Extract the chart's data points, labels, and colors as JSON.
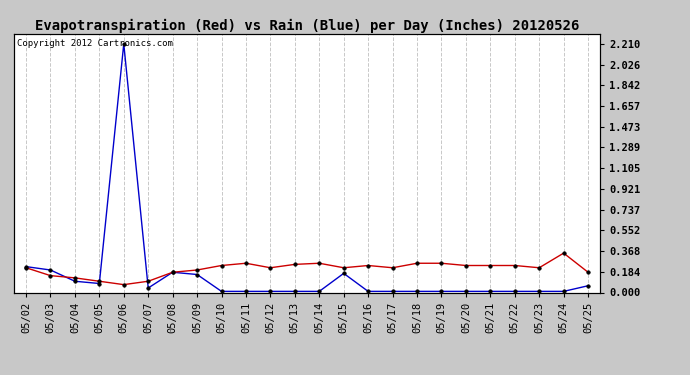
{
  "title": "Evapotranspiration (Red) vs Rain (Blue) per Day (Inches) 20120526",
  "copyright_text": "Copyright 2012 Cartronics.com",
  "dates": [
    "05/02",
    "05/03",
    "05/04",
    "05/05",
    "05/06",
    "05/07",
    "05/08",
    "05/09",
    "05/10",
    "05/11",
    "05/12",
    "05/13",
    "05/14",
    "05/15",
    "05/16",
    "05/17",
    "05/18",
    "05/19",
    "05/20",
    "05/21",
    "05/22",
    "05/23",
    "05/24",
    "05/25"
  ],
  "rain_blue": [
    0.23,
    0.2,
    0.1,
    0.08,
    2.21,
    0.04,
    0.18,
    0.16,
    0.01,
    0.01,
    0.01,
    0.01,
    0.01,
    0.17,
    0.01,
    0.01,
    0.01,
    0.01,
    0.01,
    0.01,
    0.01,
    0.01,
    0.01,
    0.06
  ],
  "et_red": [
    0.22,
    0.15,
    0.13,
    0.1,
    0.07,
    0.1,
    0.18,
    0.2,
    0.24,
    0.26,
    0.22,
    0.25,
    0.26,
    0.22,
    0.24,
    0.22,
    0.26,
    0.26,
    0.24,
    0.24,
    0.24,
    0.22,
    0.35,
    0.18
  ],
  "ylim": [
    0.0,
    2.3
  ],
  "yticks": [
    0.0,
    0.184,
    0.368,
    0.552,
    0.737,
    0.921,
    1.105,
    1.289,
    1.473,
    1.657,
    1.842,
    2.026,
    2.21
  ],
  "bg_color": "#c8c8c8",
  "plot_bg": "#ffffff",
  "grid_color": "#c8c8c8",
  "line_color_blue": "#0000cc",
  "line_color_red": "#cc0000",
  "marker_color": "#000000",
  "title_fontsize": 10,
  "tick_fontsize": 7.5,
  "copyright_fontsize": 6.5
}
